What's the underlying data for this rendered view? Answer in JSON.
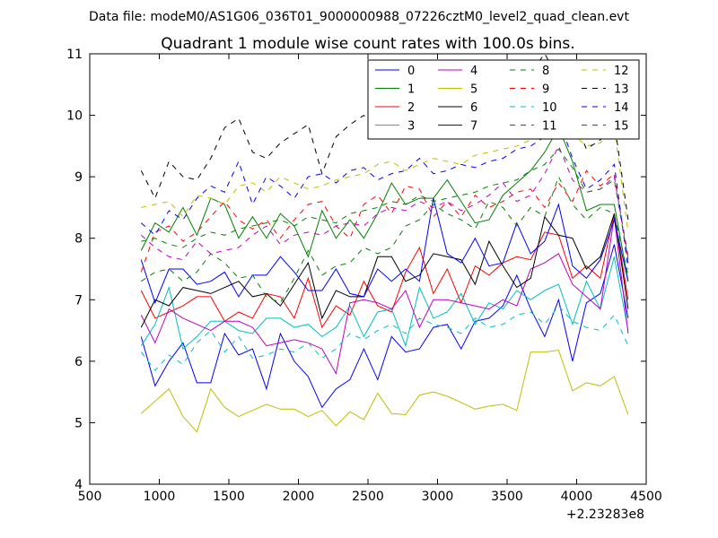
{
  "suptitle": "Data file: modeM0/AS1G06_036T01_9000000988_07226cztM0_level2_quad_clean.evt",
  "chart_data": {
    "type": "line",
    "title": "Quadrant 1 module wise count rates with 100.0s bins.",
    "xlabel": "",
    "ylabel": "",
    "x_offset_label": "+2.23283e8",
    "xlim": [
      500,
      4500
    ],
    "ylim": [
      4,
      11
    ],
    "x_ticks": [
      500,
      1000,
      1500,
      2000,
      2500,
      3000,
      3500,
      4000,
      4500
    ],
    "y_ticks": [
      4,
      5,
      6,
      7,
      8,
      9,
      10,
      11
    ],
    "legend_position": "top-right",
    "x": [
      870,
      970,
      1070,
      1170,
      1270,
      1370,
      1470,
      1570,
      1670,
      1770,
      1870,
      1970,
      2070,
      2170,
      2270,
      2370,
      2470,
      2570,
      2670,
      2770,
      2870,
      2970,
      3070,
      3170,
      3270,
      3370,
      3470,
      3570,
      3670,
      3770,
      3870,
      3970,
      4070,
      4170,
      4270,
      4370
    ],
    "series": [
      {
        "name": "0",
        "color": "#0000ff",
        "dash": "solid",
        "values": [
          6.4,
          5.6,
          6.0,
          6.3,
          5.65,
          5.65,
          6.45,
          6.1,
          6.2,
          5.55,
          6.45,
          6.0,
          5.75,
          5.25,
          5.55,
          5.7,
          6.2,
          5.7,
          6.4,
          6.15,
          6.2,
          6.55,
          6.6,
          6.2,
          6.65,
          6.7,
          6.9,
          7.4,
          6.85,
          6.4,
          7.0,
          6.0,
          6.95,
          7.1,
          7.9,
          6.7
        ]
      },
      {
        "name": "1",
        "color": "#008000",
        "dash": "solid",
        "values": [
          7.8,
          8.25,
          8.1,
          8.5,
          8.05,
          8.65,
          8.55,
          8.0,
          8.35,
          8.0,
          8.4,
          8.2,
          7.7,
          8.45,
          8.0,
          8.3,
          8.0,
          8.4,
          8.9,
          8.55,
          8.65,
          8.65,
          8.95,
          8.6,
          8.25,
          8.3,
          8.7,
          8.9,
          9.1,
          9.4,
          9.8,
          9.25,
          8.45,
          8.55,
          8.55,
          7.3
        ]
      },
      {
        "name": "2",
        "color": "#ff0000",
        "dash": "solid",
        "values": [
          7.15,
          6.7,
          6.8,
          6.9,
          7.05,
          7.05,
          6.65,
          6.8,
          6.7,
          7.1,
          7.05,
          6.7,
          7.35,
          6.55,
          6.9,
          6.75,
          7.3,
          6.9,
          6.8,
          7.45,
          7.85,
          7.1,
          7.5,
          6.95,
          7.55,
          7.4,
          7.6,
          7.7,
          7.65,
          8.1,
          8.05,
          7.35,
          7.55,
          7.35,
          8.4,
          7.0
        ]
      },
      {
        "name": "3",
        "color": "#00bfbf",
        "dash": "solid",
        "values": [
          6.25,
          6.6,
          7.2,
          6.2,
          6.4,
          6.65,
          6.65,
          6.5,
          6.45,
          6.7,
          6.7,
          6.55,
          6.6,
          6.4,
          6.55,
          6.9,
          6.4,
          6.8,
          6.85,
          6.25,
          7.2,
          6.7,
          6.8,
          7.1,
          6.6,
          6.95,
          6.85,
          7.15,
          7.0,
          7.15,
          7.25,
          6.6,
          7.3,
          6.85,
          7.7,
          6.5
        ]
      },
      {
        "name": "4",
        "color": "#bf00bf",
        "dash": "solid",
        "values": [
          6.75,
          6.3,
          6.85,
          6.7,
          6.6,
          6.5,
          6.65,
          6.65,
          6.55,
          6.25,
          6.3,
          6.35,
          6.3,
          6.2,
          5.8,
          6.95,
          7.0,
          6.95,
          6.85,
          7.15,
          6.55,
          7.0,
          7.0,
          6.95,
          6.9,
          6.85,
          7.0,
          6.9,
          7.5,
          7.6,
          7.75,
          7.25,
          7.05,
          6.85,
          8.35,
          6.45
        ]
      },
      {
        "name": "5",
        "color": "#bfbf00",
        "dash": "solid",
        "values": [
          5.15,
          5.35,
          5.55,
          5.1,
          4.85,
          5.55,
          5.25,
          5.1,
          5.2,
          5.3,
          5.22,
          5.22,
          5.1,
          5.2,
          4.95,
          5.18,
          5.05,
          5.48,
          5.15,
          5.13,
          5.45,
          5.5,
          5.43,
          5.33,
          5.22,
          5.27,
          5.3,
          5.2,
          6.15,
          6.15,
          6.18,
          5.52,
          5.65,
          5.6,
          5.75,
          5.13
        ]
      },
      {
        "name": "6",
        "color": "#000000",
        "dash": "solid",
        "values": [
          6.55,
          7.0,
          6.9,
          7.2,
          7.15,
          7.1,
          7.2,
          7.3,
          7.05,
          7.1,
          6.9,
          7.25,
          7.6,
          6.7,
          7.15,
          7.05,
          7.05,
          7.7,
          7.7,
          7.3,
          7.4,
          7.75,
          7.7,
          7.65,
          7.25,
          7.95,
          7.55,
          7.2,
          7.35,
          8.35,
          8.05,
          8.0,
          7.5,
          7.7,
          8.4,
          6.85
        ]
      },
      {
        "name": "7",
        "color": "#0000ff",
        "dash": "solid",
        "values": [
          7.65,
          6.95,
          7.5,
          7.5,
          7.25,
          7.3,
          7.45,
          7.05,
          7.4,
          7.4,
          7.7,
          7.45,
          7.15,
          7.15,
          7.5,
          7.1,
          7.05,
          7.5,
          7.3,
          7.5,
          7.3,
          8.65,
          7.75,
          7.6,
          8.0,
          7.55,
          7.6,
          8.25,
          7.75,
          7.95,
          8.55,
          7.55,
          7.35,
          7.65,
          8.3,
          7.3
        ]
      },
      {
        "name": "8",
        "color": "#008000",
        "dash": "dashed",
        "values": [
          7.3,
          7.45,
          7.5,
          7.3,
          7.45,
          7.75,
          7.6,
          7.35,
          7.4,
          7.05,
          6.95,
          7.35,
          7.8,
          7.4,
          7.55,
          7.6,
          7.85,
          7.75,
          7.85,
          8.2,
          8.3,
          8.55,
          8.4,
          8.3,
          8.15,
          8.6,
          8.5,
          8.2,
          8.5,
          8.35,
          9.0,
          8.55,
          8.3,
          8.5,
          8.4,
          7.4
        ]
      },
      {
        "name": "9",
        "color": "#ff0000",
        "dash": "dashed",
        "values": [
          7.45,
          8.1,
          8.2,
          7.95,
          8.1,
          8.35,
          8.6,
          8.3,
          8.15,
          8.3,
          8.0,
          8.3,
          8.55,
          8.6,
          8.2,
          8.0,
          8.55,
          8.7,
          8.4,
          8.85,
          8.8,
          8.35,
          8.6,
          8.35,
          8.7,
          8.5,
          8.6,
          8.75,
          8.8,
          8.5,
          8.9,
          8.6,
          9.1,
          8.85,
          9.05,
          7.6
        ]
      },
      {
        "name": "10",
        "color": "#00bfbf",
        "dash": "dashed",
        "values": [
          6.15,
          5.85,
          6.1,
          5.95,
          6.3,
          6.5,
          6.15,
          6.4,
          6.05,
          6.1,
          6.2,
          6.15,
          6.3,
          6.05,
          6.2,
          6.45,
          6.35,
          6.5,
          6.6,
          6.45,
          6.7,
          6.6,
          6.55,
          6.45,
          6.7,
          6.55,
          6.6,
          6.75,
          6.8,
          6.6,
          6.9,
          6.65,
          6.55,
          6.5,
          6.75,
          6.25
        ]
      },
      {
        "name": "11",
        "color": "#bf00bf",
        "dash": "dashed",
        "values": [
          8.05,
          7.85,
          7.7,
          7.65,
          7.95,
          7.75,
          7.8,
          7.85,
          8.05,
          8.2,
          7.9,
          8.05,
          8.1,
          8.05,
          8.2,
          8.25,
          8.2,
          8.4,
          8.5,
          8.45,
          8.6,
          8.5,
          8.6,
          8.45,
          8.55,
          8.7,
          8.9,
          8.6,
          8.7,
          9.05,
          9.5,
          8.95,
          8.75,
          8.8,
          9.0,
          7.7
        ]
      },
      {
        "name": "12",
        "color": "#bfbf00",
        "dash": "dashed",
        "values": [
          8.5,
          8.55,
          8.6,
          8.35,
          8.7,
          8.65,
          8.55,
          8.85,
          8.9,
          8.75,
          9.0,
          8.9,
          8.8,
          8.85,
          8.95,
          9.0,
          9.05,
          9.2,
          9.25,
          9.1,
          9.2,
          9.3,
          9.25,
          9.2,
          9.35,
          9.4,
          9.45,
          9.5,
          9.6,
          9.9,
          10.1,
          9.7,
          9.5,
          9.55,
          9.8,
          8.1
        ]
      },
      {
        "name": "13",
        "color": "#000000",
        "dash": "dashed",
        "values": [
          9.1,
          8.65,
          9.25,
          9.0,
          8.95,
          9.3,
          9.8,
          9.95,
          9.4,
          9.3,
          9.55,
          9.7,
          9.85,
          9.05,
          9.65,
          9.85,
          10.0,
          9.8,
          10.05,
          9.9,
          10.25,
          10.1,
          10.2,
          10.3,
          10.35,
          10.5,
          10.4,
          10.55,
          10.7,
          11.0,
          10.6,
          10.0,
          9.45,
          9.6,
          9.9,
          8.3
        ]
      },
      {
        "name": "14",
        "color": "#0000ff",
        "dash": "dashed",
        "values": [
          8.25,
          8.05,
          8.45,
          8.3,
          8.65,
          8.85,
          8.75,
          9.25,
          8.55,
          9.0,
          8.85,
          8.65,
          9.0,
          9.05,
          8.9,
          9.1,
          9.15,
          8.95,
          9.05,
          9.1,
          9.3,
          9.05,
          9.1,
          9.2,
          9.15,
          9.25,
          9.3,
          9.45,
          9.5,
          9.65,
          9.95,
          9.3,
          8.8,
          8.95,
          9.2,
          7.5
        ]
      },
      {
        "name": "15",
        "color": "#008000",
        "dash": "dashed",
        "values": [
          7.95,
          8.0,
          7.9,
          7.85,
          8.0,
          8.1,
          8.05,
          8.15,
          8.2,
          8.25,
          8.3,
          8.2,
          8.35,
          8.3,
          8.25,
          8.4,
          8.45,
          8.5,
          8.6,
          8.55,
          8.7,
          8.6,
          8.65,
          8.7,
          8.75,
          8.85,
          8.9,
          8.95,
          9.1,
          9.2,
          9.45,
          9.15,
          8.75,
          8.8,
          8.95,
          7.65
        ]
      }
    ]
  }
}
